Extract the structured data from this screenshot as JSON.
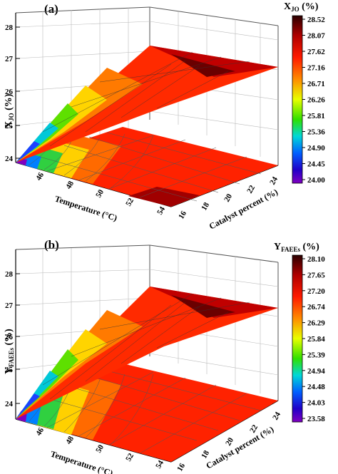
{
  "chart_data": [
    {
      "type": "surface3d",
      "panel_label": "(a)",
      "zlabel_main": "X",
      "zlabel_sub": "JO",
      "zlabel_suffix": " (%)",
      "colorbar_title_main": "X",
      "colorbar_title_sub": "JO",
      "colorbar_title_suffix": " (%)",
      "xlabel": "Temperature (°C)",
      "ylabel": "Catalyst percent (%)",
      "x_ticks": [
        "46",
        "48",
        "50",
        "52",
        "54"
      ],
      "y_ticks": [
        "16",
        "18",
        "20",
        "22",
        "24"
      ],
      "z_ticks": [
        "24",
        "25",
        "26",
        "27",
        "28"
      ],
      "xlim": [
        45,
        55
      ],
      "ylim": [
        15,
        25
      ],
      "zlim": [
        24,
        28.52
      ],
      "colorbar_ticks": [
        "28.52",
        "28.07",
        "27.62",
        "27.16",
        "26.71",
        "26.26",
        "25.81",
        "25.36",
        "24.90",
        "24.45",
        "24.00"
      ],
      "surface": {
        "z_corner_low": 24.0,
        "z_max": 28.52,
        "z_far_temp_low_cat": 27.5,
        "z_far_temp_high_cat": 27.3
      }
    },
    {
      "type": "surface3d",
      "panel_label": "(b)",
      "zlabel_main": "Y",
      "zlabel_sub": "FAEEs",
      "zlabel_suffix": " (%)",
      "colorbar_title_main": "Y",
      "colorbar_title_sub": "FAEEs",
      "colorbar_title_suffix": " (%)",
      "xlabel": "Temperature (°C)",
      "ylabel": "Catalyst percent (%)",
      "x_ticks": [
        "46",
        "48",
        "50",
        "52",
        "54"
      ],
      "y_ticks": [
        "16",
        "18",
        "20",
        "22",
        "24"
      ],
      "z_ticks": [
        "24",
        "25",
        "26",
        "27",
        "28"
      ],
      "xlim": [
        45,
        55
      ],
      "ylim": [
        15,
        25
      ],
      "zlim": [
        23.58,
        28.1
      ],
      "colorbar_ticks": [
        "28.10",
        "27.65",
        "27.20",
        "26.74",
        "26.29",
        "25.84",
        "25.39",
        "24.94",
        "24.48",
        "24.03",
        "23.58"
      ],
      "surface": {
        "z_corner_low": 23.58,
        "z_max": 28.1,
        "z_far_temp_low_cat": 27.0,
        "z_far_temp_high_cat": 26.9
      }
    }
  ]
}
